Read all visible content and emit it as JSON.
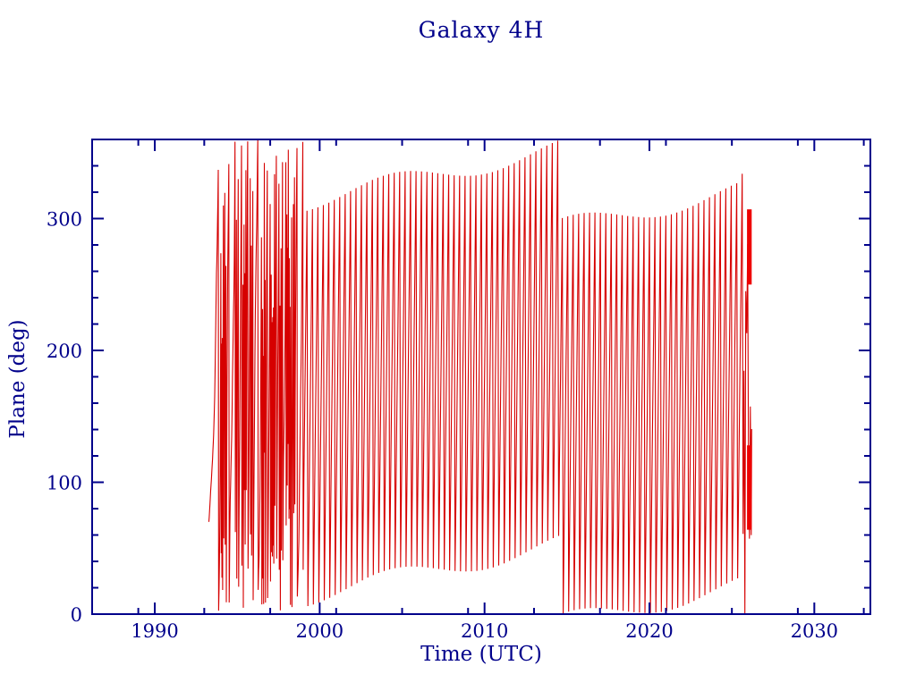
{
  "colors": {
    "background": "#FFFFFF",
    "axis": "#00008B",
    "data_line": "#D60000",
    "data_solid": "#EE0000"
  },
  "chart_data": {
    "type": "line",
    "title": "Galaxy 4H",
    "xlabel": "Time (UTC)",
    "ylabel": "Plane (deg)",
    "xlim": [
      1986.2,
      2033.4
    ],
    "ylim": [
      0,
      360
    ],
    "grid": false,
    "legend": "none",
    "x_major_ticks": [
      1990,
      2000,
      2010,
      2020,
      2030
    ],
    "x_major_tick_labels": [
      "1990",
      "2000",
      "2010",
      "2020",
      "2030"
    ],
    "x_minor_ticks": [
      1989,
      1993,
      1997,
      2001,
      2005,
      2009,
      2013,
      2017,
      2021,
      2025,
      2029,
      2033
    ],
    "y_major_ticks": [
      0,
      100,
      200,
      300
    ],
    "y_major_tick_labels": [
      "0",
      "100",
      "200",
      "300"
    ],
    "y_minor_tick_step": 20,
    "series_description": "Plane angle wrapped to 0-360 deg, cycling rapidly with time; chaotic dense wrapping 1993.3-1999, regular sawtooth wrapping (period ~0.33 yr, 60-deg sample steps) 1999-2025.6, terminal spin-up cluster ending 2026.2; no data outside 1993.3-2026.2.",
    "data_start": 1993.28,
    "data_end": 2026.2,
    "phase_model": {
      "theta0_deg": 70,
      "chaotic": {
        "t_start": 1993.28,
        "t_end": 1999.05,
        "base_rate": 3.5,
        "wiggle_amp": 1.6,
        "wiggle_period": 0.8,
        "ramp_start": 1993.5,
        "ramp_width": 0.3,
        "ramp_floor": 0.13,
        "sample_step": 0.022,
        "bursts": [
          [
            1994.08,
            20,
            0.07
          ],
          [
            1994.3,
            9,
            0.05
          ],
          [
            1994.95,
            7,
            0.07
          ],
          [
            1995.45,
            19,
            0.09
          ],
          [
            1995.85,
            10,
            0.06
          ],
          [
            1996.6,
            17,
            0.09
          ],
          [
            1997.15,
            22,
            0.1
          ],
          [
            1997.65,
            14,
            0.07
          ],
          [
            1998.1,
            24,
            0.1
          ],
          [
            1998.45,
            12,
            0.06
          ]
        ]
      },
      "regular": {
        "t_start": 1999.05,
        "t_end": 2025.55,
        "cycles_per_year": 3.032,
        "wobble_amp": 0.012,
        "wobble_period": 11,
        "sample_step": 0.0551
      },
      "final_spinup": {
        "t_start": 2025.55,
        "t_end": 2026.2,
        "max_extra_rate": 55
      },
      "solid_blocks": [
        {
          "t0": 2025.92,
          "t1": 2026.2,
          "deg0": 250,
          "deg1": 307
        },
        {
          "t0": 2025.92,
          "t1": 2026.2,
          "deg0": 64,
          "deg1": 128
        }
      ]
    }
  }
}
